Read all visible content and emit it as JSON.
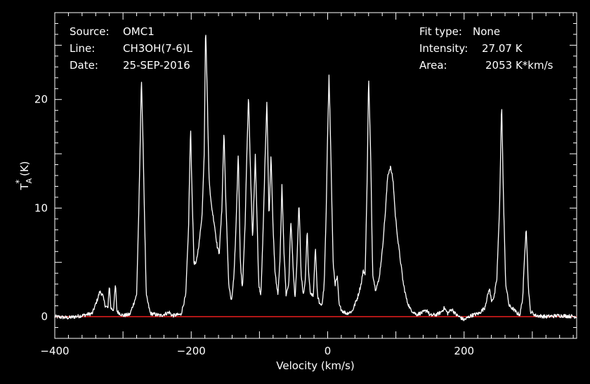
{
  "header_left": [
    {
      "key": "Source:",
      "value": "OMC1"
    },
    {
      "key": "Line:",
      "value": "CH3OH(7-6)L"
    },
    {
      "key": "Date:",
      "value": "25-SEP-2016"
    }
  ],
  "header_right": [
    {
      "key": "Fit type:",
      "value": "None"
    },
    {
      "key": "Intensity:",
      "value": "27.07 K"
    },
    {
      "key": "Area:",
      "value": "2053 K*km/s"
    }
  ],
  "colors": {
    "background": "#000000",
    "foreground": "#ffffff",
    "baseline": "#ff0000"
  },
  "chart_data": {
    "type": "line",
    "xlabel": "Velocity (km/s)",
    "ylabel": "T_A^* (K)",
    "xlim": [
      -400,
      365
    ],
    "ylim": [
      -2,
      28
    ],
    "xticks": [
      -400,
      -200,
      0,
      200
    ],
    "yticks": [
      0,
      10,
      20
    ],
    "baseline": 0,
    "series": [
      {
        "values": [
          [
            -400,
            0.0
          ],
          [
            -380,
            -0.1
          ],
          [
            -360,
            0.1
          ],
          [
            -345,
            0.3
          ],
          [
            -338,
            1.5
          ],
          [
            -334,
            2.3
          ],
          [
            -330,
            2.0
          ],
          [
            -326,
            1.0
          ],
          [
            -322,
            0.8
          ],
          [
            -320,
            3.0
          ],
          [
            -318,
            0.8
          ],
          [
            -314,
            0.6
          ],
          [
            -311,
            3.0
          ],
          [
            -309,
            0.5
          ],
          [
            -300,
            0.1
          ],
          [
            -290,
            0.2
          ],
          [
            -280,
            2.0
          ],
          [
            -276,
            12.0
          ],
          [
            -273,
            22.3
          ],
          [
            -270,
            14.0
          ],
          [
            -266,
            2.0
          ],
          [
            -260,
            0.3
          ],
          [
            -245,
            0.1
          ],
          [
            -232,
            0.4
          ],
          [
            -228,
            0.1
          ],
          [
            -215,
            0.2
          ],
          [
            -208,
            2.0
          ],
          [
            -204,
            8.0
          ],
          [
            -201,
            17.5
          ],
          [
            -199,
            12.0
          ],
          [
            -196,
            5.0
          ],
          [
            -193,
            4.8
          ],
          [
            -188,
            7.0
          ],
          [
            -184,
            9.5
          ],
          [
            -181,
            15.0
          ],
          [
            -179,
            27.0
          ],
          [
            -177,
            22.0
          ],
          [
            -174,
            13.0
          ],
          [
            -171,
            10.5
          ],
          [
            -166,
            8.5
          ],
          [
            -162,
            6.5
          ],
          [
            -159,
            5.8
          ],
          [
            -155,
            10.0
          ],
          [
            -152,
            17.2
          ],
          [
            -149,
            10.0
          ],
          [
            -145,
            3.0
          ],
          [
            -141,
            1.3
          ],
          [
            -137,
            4.0
          ],
          [
            -134,
            9.0
          ],
          [
            -131,
            15.3
          ],
          [
            -128,
            5.0
          ],
          [
            -125,
            2.5
          ],
          [
            -121,
            8.5
          ],
          [
            -118,
            16.0
          ],
          [
            -116,
            20.6
          ],
          [
            -113,
            13.0
          ],
          [
            -110,
            7.0
          ],
          [
            -106,
            15.0
          ],
          [
            -104,
            10.0
          ],
          [
            -101,
            3.0
          ],
          [
            -98,
            2.0
          ],
          [
            -95,
            7.0
          ],
          [
            -92,
            14.0
          ],
          [
            -89,
            20.0
          ],
          [
            -86,
            9.0
          ],
          [
            -83,
            15.0
          ],
          [
            -80,
            8.0
          ],
          [
            -77,
            4.0
          ],
          [
            -73,
            2.0
          ],
          [
            -70,
            5.0
          ],
          [
            -67,
            12.0
          ],
          [
            -64,
            6.0
          ],
          [
            -61,
            2.0
          ],
          [
            -57,
            3.0
          ],
          [
            -54,
            9.0
          ],
          [
            -51,
            5.0
          ],
          [
            -48,
            1.5
          ],
          [
            -45,
            5.0
          ],
          [
            -42,
            10.6
          ],
          [
            -39,
            4.0
          ],
          [
            -36,
            2.0
          ],
          [
            -33,
            3.0
          ],
          [
            -30,
            8.0
          ],
          [
            -28,
            4.0
          ],
          [
            -25,
            2.0
          ],
          [
            -21,
            2.0
          ],
          [
            -18,
            6.5
          ],
          [
            -15,
            2.0
          ],
          [
            -11,
            1.0
          ],
          [
            -8,
            1.2
          ],
          [
            -5,
            3.0
          ],
          [
            -2,
            10.0
          ],
          [
            0,
            17.0
          ],
          [
            2,
            22.4
          ],
          [
            5,
            14.0
          ],
          [
            8,
            5.0
          ],
          [
            11,
            3.0
          ],
          [
            14,
            3.6
          ],
          [
            17,
            1.0
          ],
          [
            22,
            0.5
          ],
          [
            28,
            0.3
          ],
          [
            36,
            0.5
          ],
          [
            44,
            1.8
          ],
          [
            49,
            3.0
          ],
          [
            52,
            4.2
          ],
          [
            55,
            4.0
          ],
          [
            58,
            13.0
          ],
          [
            60,
            22.3
          ],
          [
            63,
            15.0
          ],
          [
            66,
            4.0
          ],
          [
            70,
            2.5
          ],
          [
            75,
            3.3
          ],
          [
            80,
            6.0
          ],
          [
            85,
            10.0
          ],
          [
            88,
            13.0
          ],
          [
            92,
            13.8
          ],
          [
            96,
            12.5
          ],
          [
            99,
            9.5
          ],
          [
            103,
            7.0
          ],
          [
            107,
            5.0
          ],
          [
            111,
            3.0
          ],
          [
            116,
            1.5
          ],
          [
            121,
            0.7
          ],
          [
            130,
            0.2
          ],
          [
            140,
            0.4
          ],
          [
            146,
            0.6
          ],
          [
            150,
            0.1
          ],
          [
            160,
            0.2
          ],
          [
            166,
            0.4
          ],
          [
            171,
            0.8
          ],
          [
            176,
            0.3
          ],
          [
            182,
            0.7
          ],
          [
            188,
            0.2
          ],
          [
            200,
            -0.3
          ],
          [
            210,
            0.1
          ],
          [
            222,
            0.3
          ],
          [
            230,
            0.8
          ],
          [
            234,
            1.8
          ],
          [
            237,
            2.6
          ],
          [
            240,
            1.5
          ],
          [
            244,
            1.8
          ],
          [
            248,
            3.5
          ],
          [
            252,
            10.0
          ],
          [
            255,
            19.8
          ],
          [
            258,
            10.0
          ],
          [
            261,
            3.0
          ],
          [
            266,
            1.0
          ],
          [
            272,
            0.7
          ],
          [
            278,
            0.3
          ],
          [
            282,
            0.2
          ],
          [
            286,
            1.8
          ],
          [
            289,
            6.0
          ],
          [
            291,
            8.4
          ],
          [
            294,
            3.0
          ],
          [
            297,
            0.5
          ],
          [
            305,
            0.1
          ],
          [
            320,
            0.0
          ],
          [
            340,
            0.1
          ],
          [
            365,
            0.0
          ]
        ]
      }
    ]
  }
}
